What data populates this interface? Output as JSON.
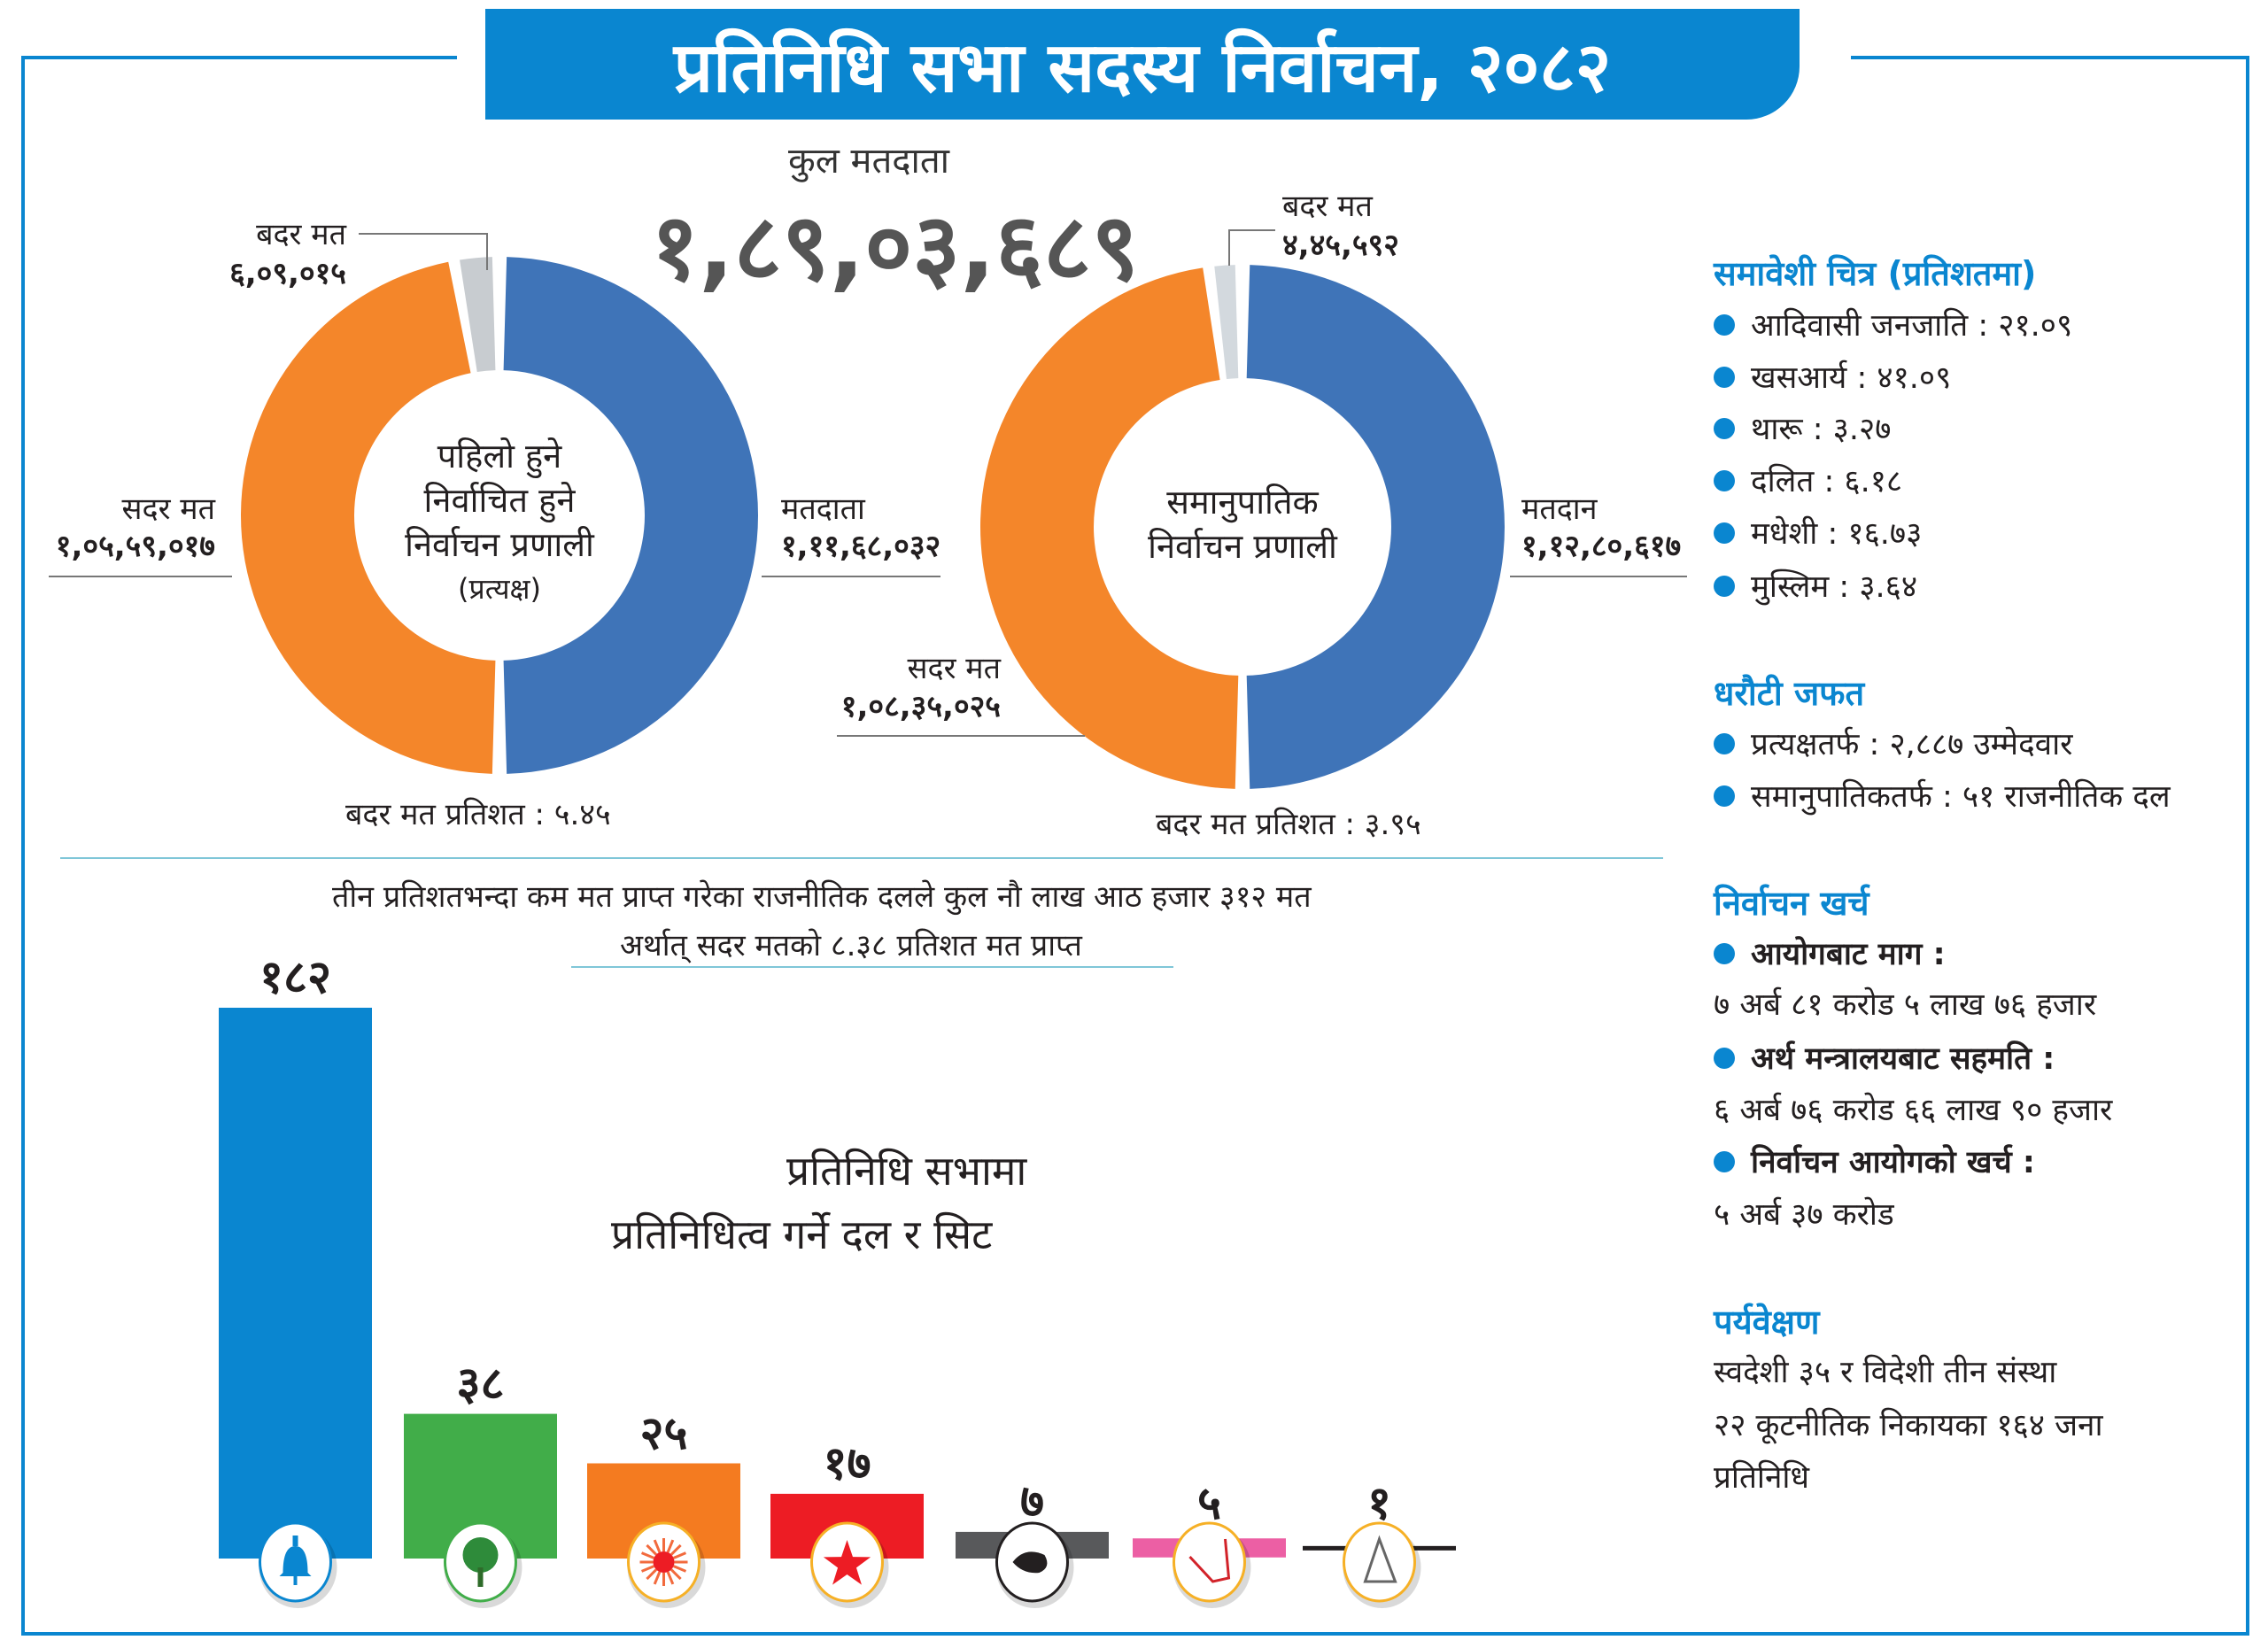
{
  "header": {
    "title": "प्रतिनिधि सभा सदस्य निर्वाचन, २०८२"
  },
  "total_voters": {
    "label": "कुल मतदाता",
    "value": "१,८९,०३,६८९"
  },
  "colors": {
    "brand": "#0a86d0",
    "turnout": "#3f74b8",
    "valid": "#f4862a",
    "invalid": "#c8ccd0"
  },
  "chart_data": [
    {
      "type": "pie",
      "style": "donut",
      "center_label": [
        "पहिलो हुने",
        "निर्वाचित हुने",
        "निर्वाचन प्रणाली",
        "(प्रत्यक्ष)"
      ],
      "slices": [
        {
          "label": "मतदाता",
          "value": 11168032,
          "display": "१,११,६८,०३२",
          "color": "#3f74b8"
        },
        {
          "label": "सदर मत",
          "value": 10559017,
          "display": "१,०५,५९,०१७",
          "color": "#f4862a"
        },
        {
          "label": "बदर मत",
          "value": 609015,
          "display": "६,०९,०१५",
          "color": "#c8ccd0"
        }
      ],
      "footer": "बदर मत प्रतिशत : ५.४५"
    },
    {
      "type": "pie",
      "style": "donut",
      "center_label": [
        "समानुपातिक",
        "निर्वाचन प्रणाली"
      ],
      "slices": [
        {
          "label": "मतदान",
          "value": 11280617,
          "display": "१,१२,८०,६१७",
          "color": "#3f74b8"
        },
        {
          "label": "सदर मत",
          "value": 10835025,
          "display": "१,०८,३५,०२५",
          "color": "#f4862a"
        },
        {
          "label": "बदर मत",
          "value": 445592,
          "display": "४,४५,५९२",
          "color": "#d3d9de"
        }
      ],
      "footer": "बदर मत प्रतिशत : ३.९५"
    },
    {
      "type": "bar",
      "title": [
        "प्रतिनिधि सभामा",
        "प्रतिनिधित्व गर्ने दल र सिट"
      ],
      "categories": [
        "bell-icon",
        "tree-icon",
        "sun-icon",
        "star-icon",
        "hand-icon",
        "plough-icon",
        "triangle-icon"
      ],
      "values": [
        182,
        38,
        25,
        17,
        7,
        5,
        1
      ],
      "labels": [
        "१८२",
        "३८",
        "२५",
        "१७",
        "७",
        "५",
        "१"
      ],
      "colors": [
        "#0a86d0",
        "#41ad49",
        "#f47b20",
        "#ed1c24",
        "#58595b",
        "#ec5fa4",
        "#231f20"
      ]
    }
  ],
  "note": {
    "line1": "तीन प्रतिशतभन्दा कम मत प्राप्त गरेका राजनीतिक दलले कुल नौ लाख आठ हजार ३१२ मत",
    "line2": "अर्थात् सदर मतको ८.३८ प्रतिशत मत प्राप्त"
  },
  "sidebar": {
    "inclusion": {
      "heading": "समावेशी चित्र (प्रतिशतमा)",
      "items": [
        "आदिवासी जनजाति : २१.०९",
        "खसआर्य : ४१.०९",
        "थारू : ३.२७",
        "दलित : ६.१८",
        "मधेशी : १६.७३",
        "मुस्लिम : ३.६४"
      ]
    },
    "deposit": {
      "heading": "धरौटी जफत",
      "items": [
        "प्रत्यक्षतर्फ : २,८८७ उम्मेदवार",
        "समानुपातिकतर्फ : ५१ राजनीतिक दल"
      ]
    },
    "expense": {
      "heading": "निर्वाचन खर्च",
      "items": [
        {
          "label": "आयोगबाट माग :",
          "value": "७ अर्ब ८१ करोड ५ लाख ७६ हजार"
        },
        {
          "label": "अर्थ मन्त्रालयबाट सहमति :",
          "value": "६ अर्ब ७६ करोड ६६ लाख ९० हजार"
        },
        {
          "label": "निर्वाचन आयोगको खर्च :",
          "value": "५ अर्ब ३७ करोड"
        }
      ]
    },
    "observation": {
      "heading": "पर्यवेक्षण",
      "lines": [
        "स्वदेशी ३५ र विदेशी तीन संस्था",
        "२२ कूटनीतिक निकायका १६४ जना",
        "प्रतिनिधि"
      ]
    }
  }
}
